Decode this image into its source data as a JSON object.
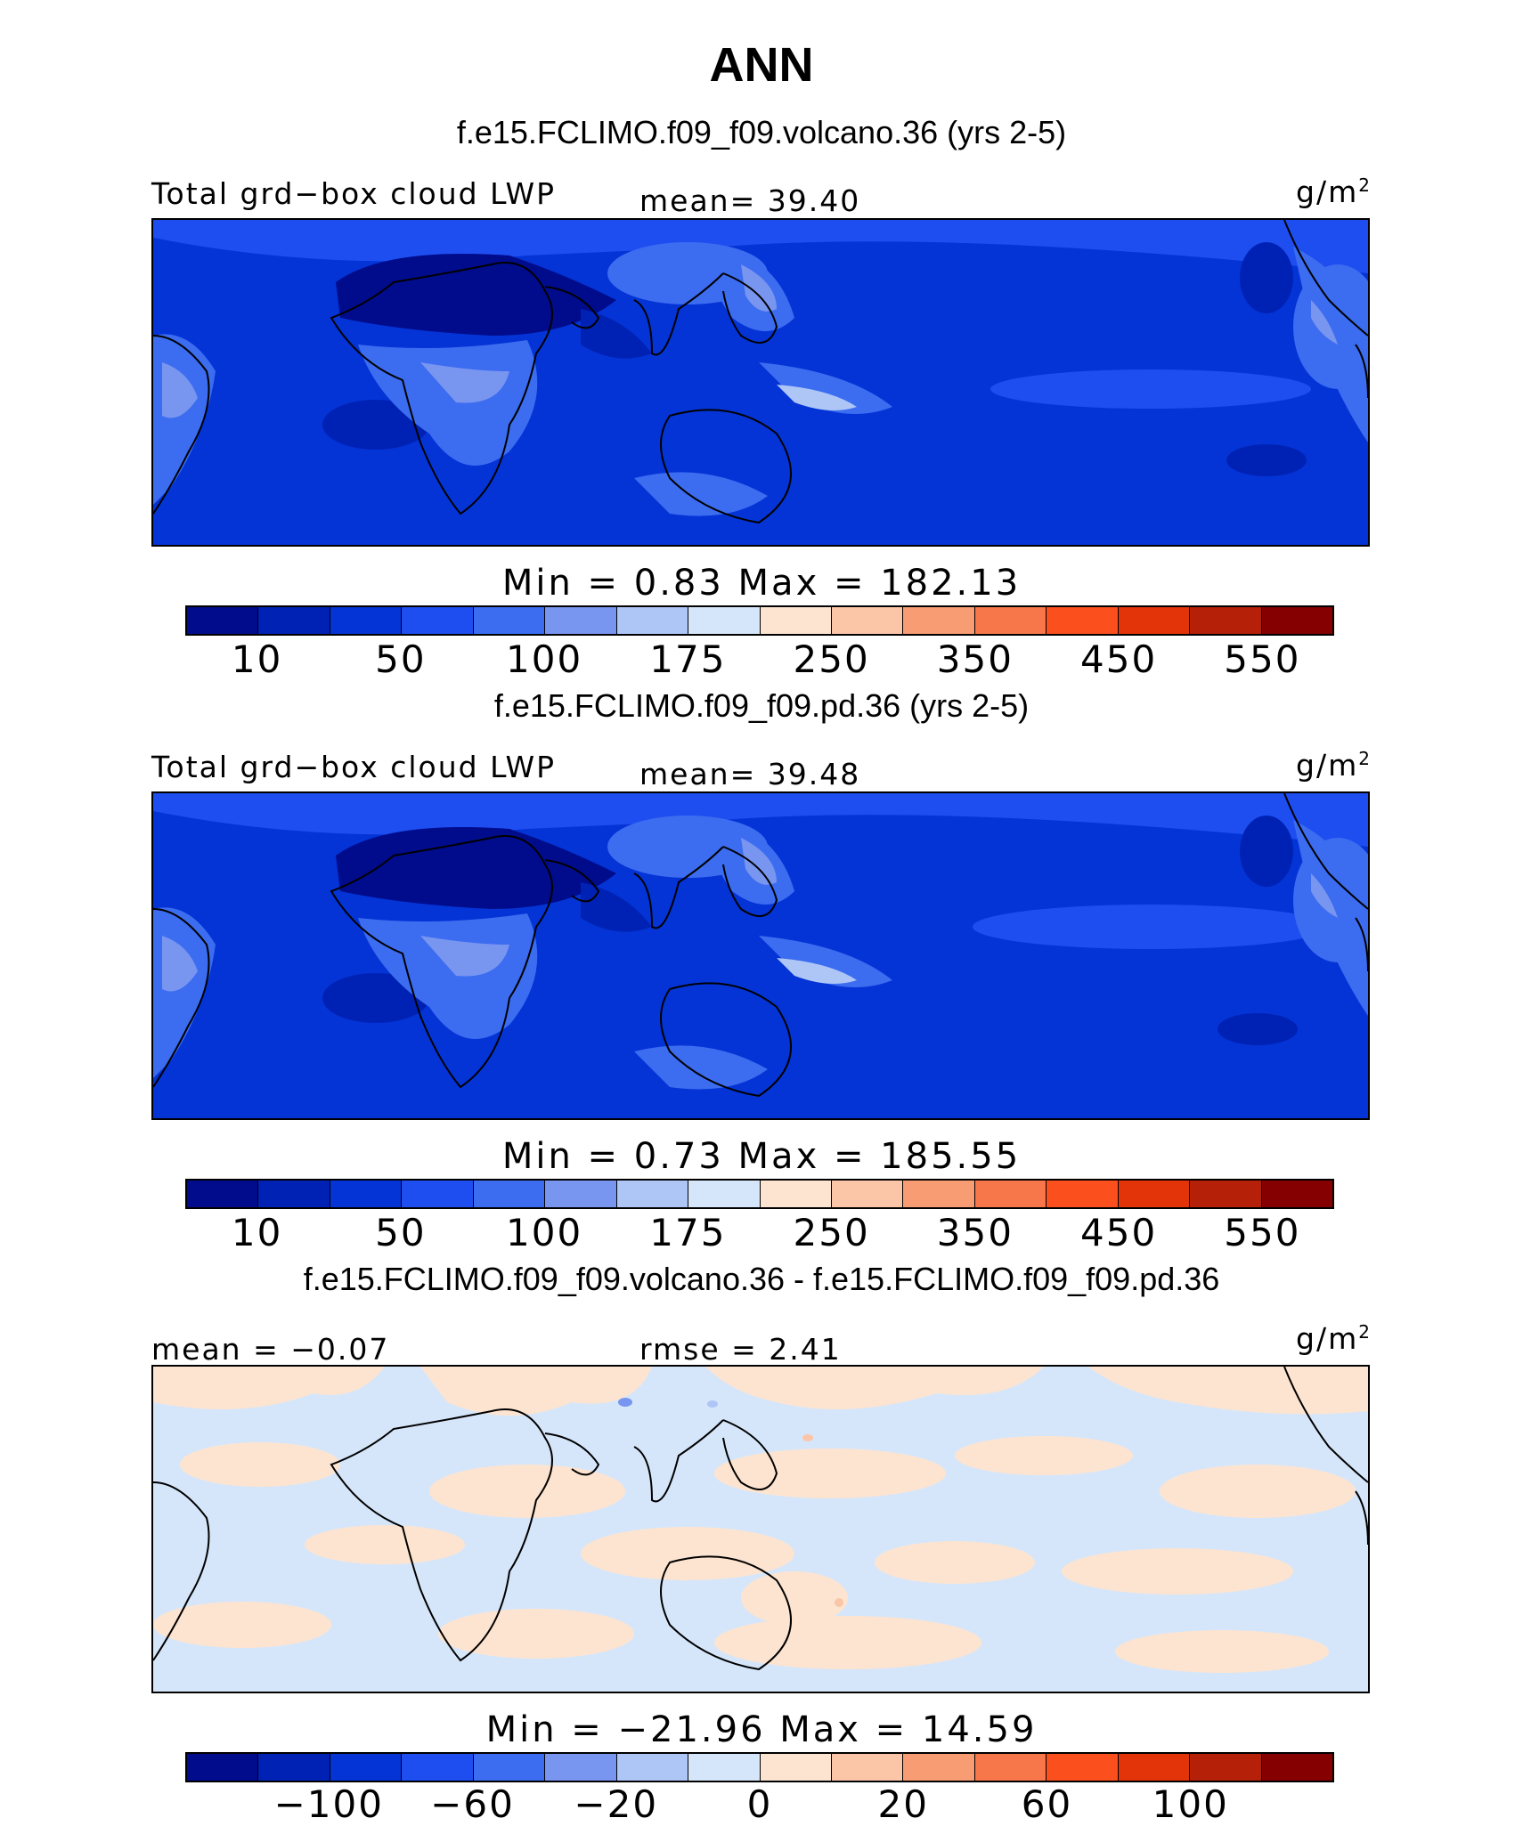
{
  "title": "ANN",
  "colors": {
    "scale": [
      "#000c8c",
      "#0022b4",
      "#0434d6",
      "#1e4ef0",
      "#3c6cf0",
      "#7895f0",
      "#aec6f6",
      "#d6e6fa",
      "#fde4d0",
      "#fbc6a8",
      "#f89c74",
      "#f7774a",
      "#fb4f1e",
      "#e23408",
      "#b42008",
      "#850000"
    ]
  },
  "panels": [
    {
      "case_title": "f.e15.FCLIMO.f09_f09.volcano.36 (yrs 2-5)",
      "left_label": "Total grd−box cloud LWP",
      "center_label": "mean=  39.40",
      "units": "g/m",
      "units_sup": "2",
      "minmax": "Min =   0.83 Max = 182.13",
      "ticks": [
        "10",
        "50",
        "100",
        "175",
        "250",
        "350",
        "450",
        "550"
      ]
    },
    {
      "case_title": "f.e15.FCLIMO.f09_f09.pd.36 (yrs 2-5)",
      "left_label": "Total grd−box cloud LWP",
      "center_label": "mean=  39.48",
      "units": "g/m",
      "units_sup": "2",
      "minmax": "Min =   0.73 Max = 185.55",
      "ticks": [
        "10",
        "50",
        "100",
        "175",
        "250",
        "350",
        "450",
        "550"
      ]
    },
    {
      "case_title": "f.e15.FCLIMO.f09_f09.volcano.36 - f.e15.FCLIMO.f09_f09.pd.36",
      "left_label": "mean =  −0.07",
      "center_label": "rmse =   2.41",
      "units": "g/m",
      "units_sup": "2",
      "minmax": "Min = −21.96 Max =  14.59",
      "ticks": [
        "−100",
        "−60",
        "−20",
        "0",
        "20",
        "60",
        "100"
      ]
    }
  ]
}
